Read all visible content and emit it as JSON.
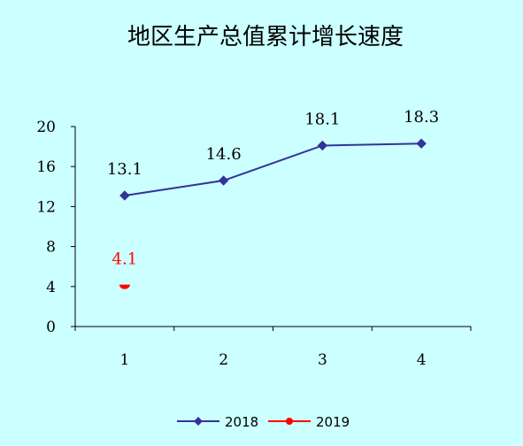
{
  "chart_data": {
    "type": "line",
    "title": "地区生产总值累计增长速度",
    "xlabel": "",
    "ylabel": "",
    "categories": [
      "1",
      "2",
      "3",
      "4"
    ],
    "ylim": [
      0,
      20
    ],
    "yticks": [
      "0",
      "4",
      "8",
      "12",
      "16",
      "20"
    ],
    "grid": false,
    "legend_position": "bottom",
    "series": [
      {
        "name": "2018",
        "color": "#333399",
        "marker": "diamond",
        "values": [
          13.1,
          14.6,
          18.1,
          18.3
        ],
        "labels": [
          "13.1",
          "14.6",
          "18.1",
          "18.3"
        ]
      },
      {
        "name": "2019",
        "color": "#ff0000",
        "marker": "circle",
        "values": [
          4.1,
          null,
          null,
          null
        ],
        "labels": [
          "4.1",
          "",
          "",
          ""
        ]
      }
    ]
  }
}
